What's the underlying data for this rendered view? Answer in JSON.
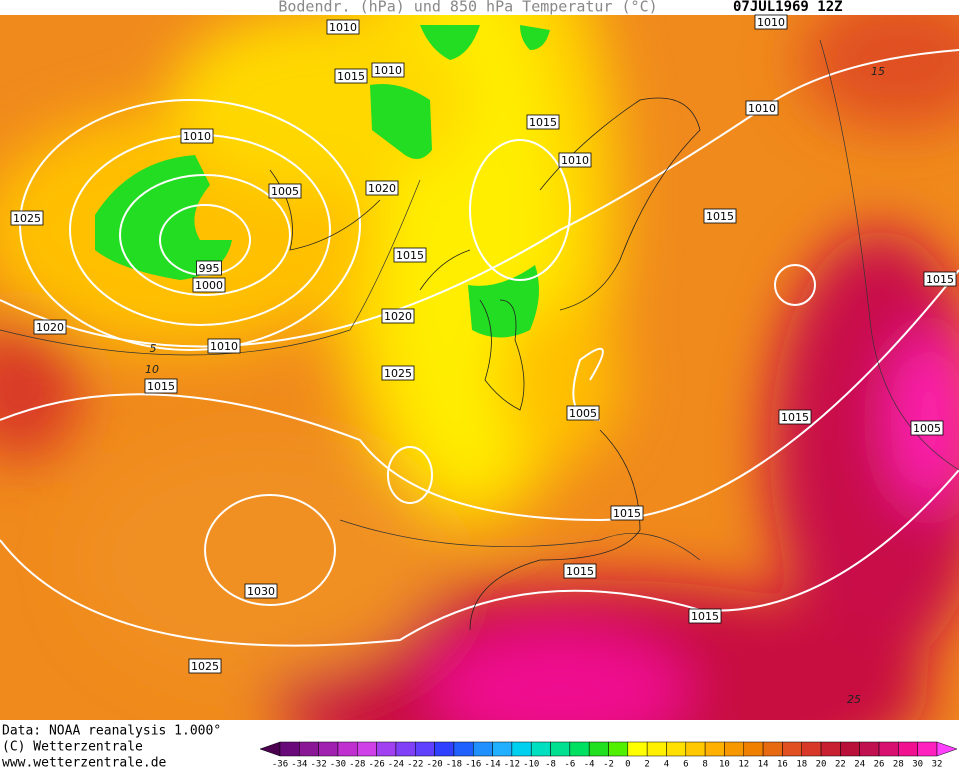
{
  "header": {
    "title": "Bodendr. (hPa) und 850 hPa Temperatur (°C)",
    "date": "07JUL1969 12Z"
  },
  "isobar_labels": [
    1010,
    1010,
    1015,
    1010,
    1015,
    1010,
    1010,
    1010,
    1005,
    1020,
    1025,
    1015,
    1015,
    995,
    1000,
    1015,
    1020,
    1020,
    1010,
    1025,
    1015,
    1005,
    1015,
    1005,
    1015,
    1015,
    1030,
    1015,
    1025
  ],
  "temperature_labels": [
    15,
    10,
    5,
    25
  ],
  "footer": {
    "source": "Data: NOAA reanalysis 1.000°",
    "copyright": "(C) Wetterzentrale",
    "url": "www.wetterzentrale.de"
  },
  "legend": {
    "labels": [
      -36,
      -34,
      -32,
      -30,
      -28,
      -26,
      -24,
      -22,
      -20,
      -18,
      -16,
      -14,
      -12,
      -10,
      -8,
      -6,
      -4,
      -2,
      0,
      2,
      4,
      6,
      8,
      10,
      12,
      14,
      16,
      18,
      20,
      22,
      24,
      26,
      28,
      30,
      32
    ],
    "colors": [
      "#4b0050",
      "#6a0a7a",
      "#8a1896",
      "#a020b0",
      "#c030d0",
      "#d040e8",
      "#a040f0",
      "#8040f8",
      "#6040ff",
      "#3040ff",
      "#2060ff",
      "#2090ff",
      "#20b0ff",
      "#00d0f0",
      "#00e0c0",
      "#00e090",
      "#00e060",
      "#20e020",
      "#50f000",
      "#ffff00",
      "#fff000",
      "#ffe000",
      "#ffc800",
      "#ffb000",
      "#f89800",
      "#f08000",
      "#e86a10",
      "#e05020",
      "#d83828",
      "#c82030",
      "#b81038",
      "#c01050",
      "#d81070",
      "#f01090",
      "#ff20c0",
      "#ff40ff"
    ]
  }
}
